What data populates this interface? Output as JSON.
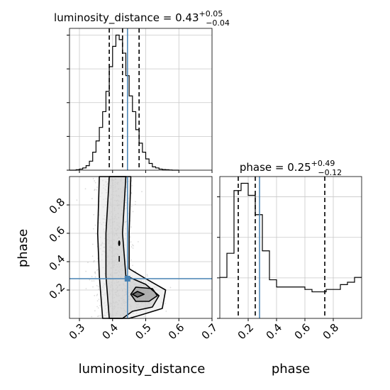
{
  "chart_data": [
    {
      "type": "histogram",
      "panel": "luminosity_distance marginal",
      "title": {
        "base": "luminosity_distance = 0.43",
        "sup": "+0.05",
        "sub": "−0.04"
      },
      "xlim": [
        0.27,
        0.7
      ],
      "x_ticks": [
        0.3,
        0.4,
        0.5,
        0.6,
        0.7
      ],
      "y_ticks_labelled": false,
      "grid": true,
      "bin_edges": [
        0.27,
        0.28,
        0.29,
        0.3,
        0.31,
        0.32,
        0.33,
        0.34,
        0.35,
        0.36,
        0.37,
        0.38,
        0.39,
        0.4,
        0.41,
        0.42,
        0.43,
        0.44,
        0.45,
        0.46,
        0.47,
        0.48,
        0.49,
        0.5,
        0.51,
        0.52,
        0.53,
        0.54,
        0.55,
        0.56,
        0.57,
        0.58,
        0.59,
        0.6
      ],
      "counts": [
        0,
        0,
        0.2,
        0.5,
        1,
        2,
        4,
        8,
        13,
        19,
        26,
        35,
        46,
        55,
        60,
        58,
        52,
        42,
        33,
        26,
        18,
        12,
        8,
        5,
        3,
        1.5,
        1,
        0.5,
        0.3,
        0.2,
        0.1,
        0,
        0
      ],
      "quantiles": [
        0.39,
        0.43,
        0.48
      ],
      "truth": 0.445
    },
    {
      "type": "scatter",
      "panel": "joint luminosity_distance vs phase",
      "xlabel": "luminosity_distance",
      "ylabel": "phase",
      "xlim": [
        0.27,
        0.7
      ],
      "ylim": [
        0.0,
        1.0
      ],
      "x_ticks": [
        0.3,
        0.4,
        0.5,
        0.6,
        0.7
      ],
      "y_ticks": [
        0.2,
        0.4,
        0.6,
        0.8
      ],
      "grid": true,
      "truth": {
        "x": 0.445,
        "y": 0.28
      },
      "density_peak": {
        "x": 0.47,
        "y": 0.17
      },
      "contours": [
        {
          "level": "outer",
          "points": [
            [
              0.37,
              0.0
            ],
            [
              0.36,
              0.3
            ],
            [
              0.355,
              0.6
            ],
            [
              0.36,
              1.0
            ],
            [
              0.455,
              1.0
            ],
            [
              0.45,
              0.6
            ],
            [
              0.45,
              0.35
            ],
            [
              0.5,
              0.28
            ],
            [
              0.56,
              0.2
            ],
            [
              0.55,
              0.07
            ],
            [
              0.48,
              0.02
            ],
            [
              0.45,
              0.0
            ]
          ]
        },
        {
          "level": "middle",
          "points": [
            [
              0.39,
              0.0
            ],
            [
              0.38,
              0.3
            ],
            [
              0.38,
              0.6
            ],
            [
              0.39,
              1.0
            ],
            [
              0.44,
              1.0
            ],
            [
              0.43,
              0.6
            ],
            [
              0.44,
              0.3
            ],
            [
              0.5,
              0.24
            ],
            [
              0.54,
              0.16
            ],
            [
              0.52,
              0.08
            ],
            [
              0.46,
              0.05
            ],
            [
              0.43,
              0.0
            ]
          ]
        },
        {
          "level": "inner",
          "points": [
            [
              0.455,
              0.17
            ],
            [
              0.47,
              0.22
            ],
            [
              0.52,
              0.21
            ],
            [
              0.535,
              0.16
            ],
            [
              0.51,
              0.12
            ],
            [
              0.47,
              0.12
            ]
          ]
        },
        {
          "level": "core",
          "points": [
            [
              0.46,
              0.17
            ],
            [
              0.475,
              0.19
            ],
            [
              0.495,
              0.17
            ],
            [
              0.475,
              0.15
            ]
          ]
        }
      ]
    },
    {
      "type": "histogram",
      "panel": "phase marginal",
      "title": {
        "base": "phase = 0.25",
        "sup": "+0.49",
        "sub": "−0.12"
      },
      "xlabel": "phase",
      "xlim": [
        0.0,
        1.0
      ],
      "x_ticks": [
        0.2,
        0.4,
        0.6,
        0.8
      ],
      "y_ticks_labelled": false,
      "grid": true,
      "bin_edges": [
        0.0,
        0.05,
        0.1,
        0.15,
        0.2,
        0.25,
        0.3,
        0.35,
        0.4,
        0.45,
        0.5,
        0.55,
        0.6,
        0.65,
        0.7,
        0.75,
        0.8,
        0.85,
        0.9,
        0.95,
        1.0
      ],
      "counts": [
        17,
        27,
        53,
        56,
        51,
        43,
        28,
        16,
        13,
        13,
        13,
        13,
        12,
        11,
        11,
        12,
        12,
        14,
        15,
        17
      ],
      "quantiles": [
        0.13,
        0.25,
        0.74
      ],
      "truth": 0.28
    }
  ]
}
